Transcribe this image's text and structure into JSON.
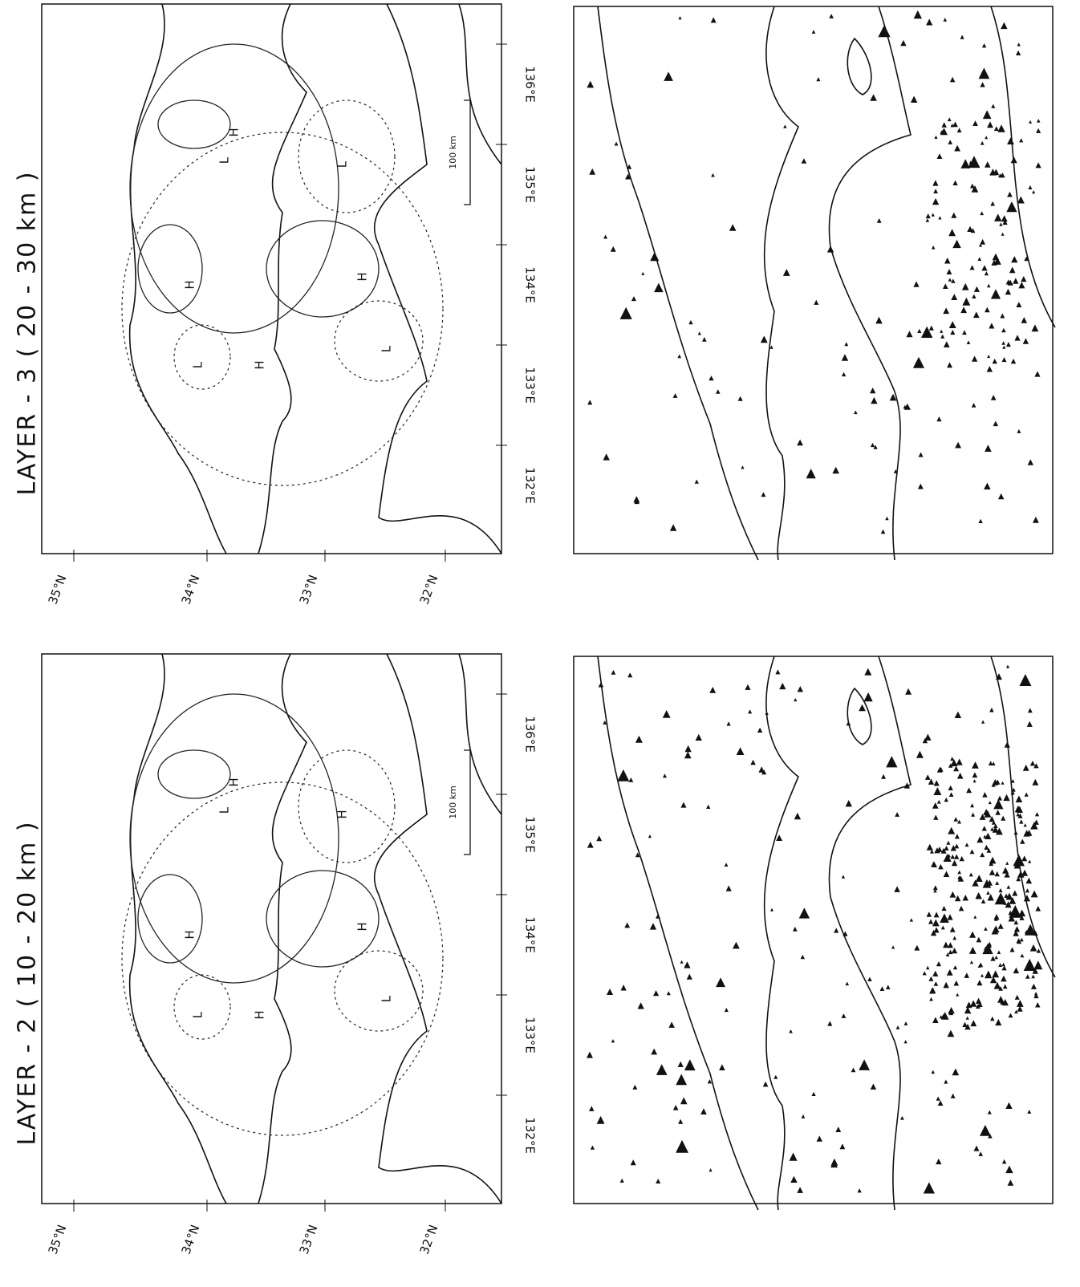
{
  "panels": [
    {
      "title": "LAYER - 3 ( 20 - 30 km )",
      "latitudes": [
        "35°N",
        "34°N",
        "33°N",
        "32°N"
      ],
      "longitudes": [
        "136°E",
        "135°E",
        "134°E",
        "133°E",
        "132°E"
      ],
      "scale": "100 km",
      "centers": [
        "H",
        "L",
        "H",
        "L",
        "H",
        "H",
        "L",
        "L"
      ]
    },
    {
      "title": "LAYER - 2 ( 10 - 20 km )",
      "latitudes": [
        "35°N",
        "34°N",
        "33°N",
        "32°N"
      ],
      "longitudes": [
        "136°E",
        "135°E",
        "134°E",
        "133°E",
        "132°E"
      ],
      "scale": "100 km",
      "centers": [
        "H",
        "L",
        "H",
        "L",
        "H",
        "H",
        "H",
        "L"
      ]
    }
  ]
}
